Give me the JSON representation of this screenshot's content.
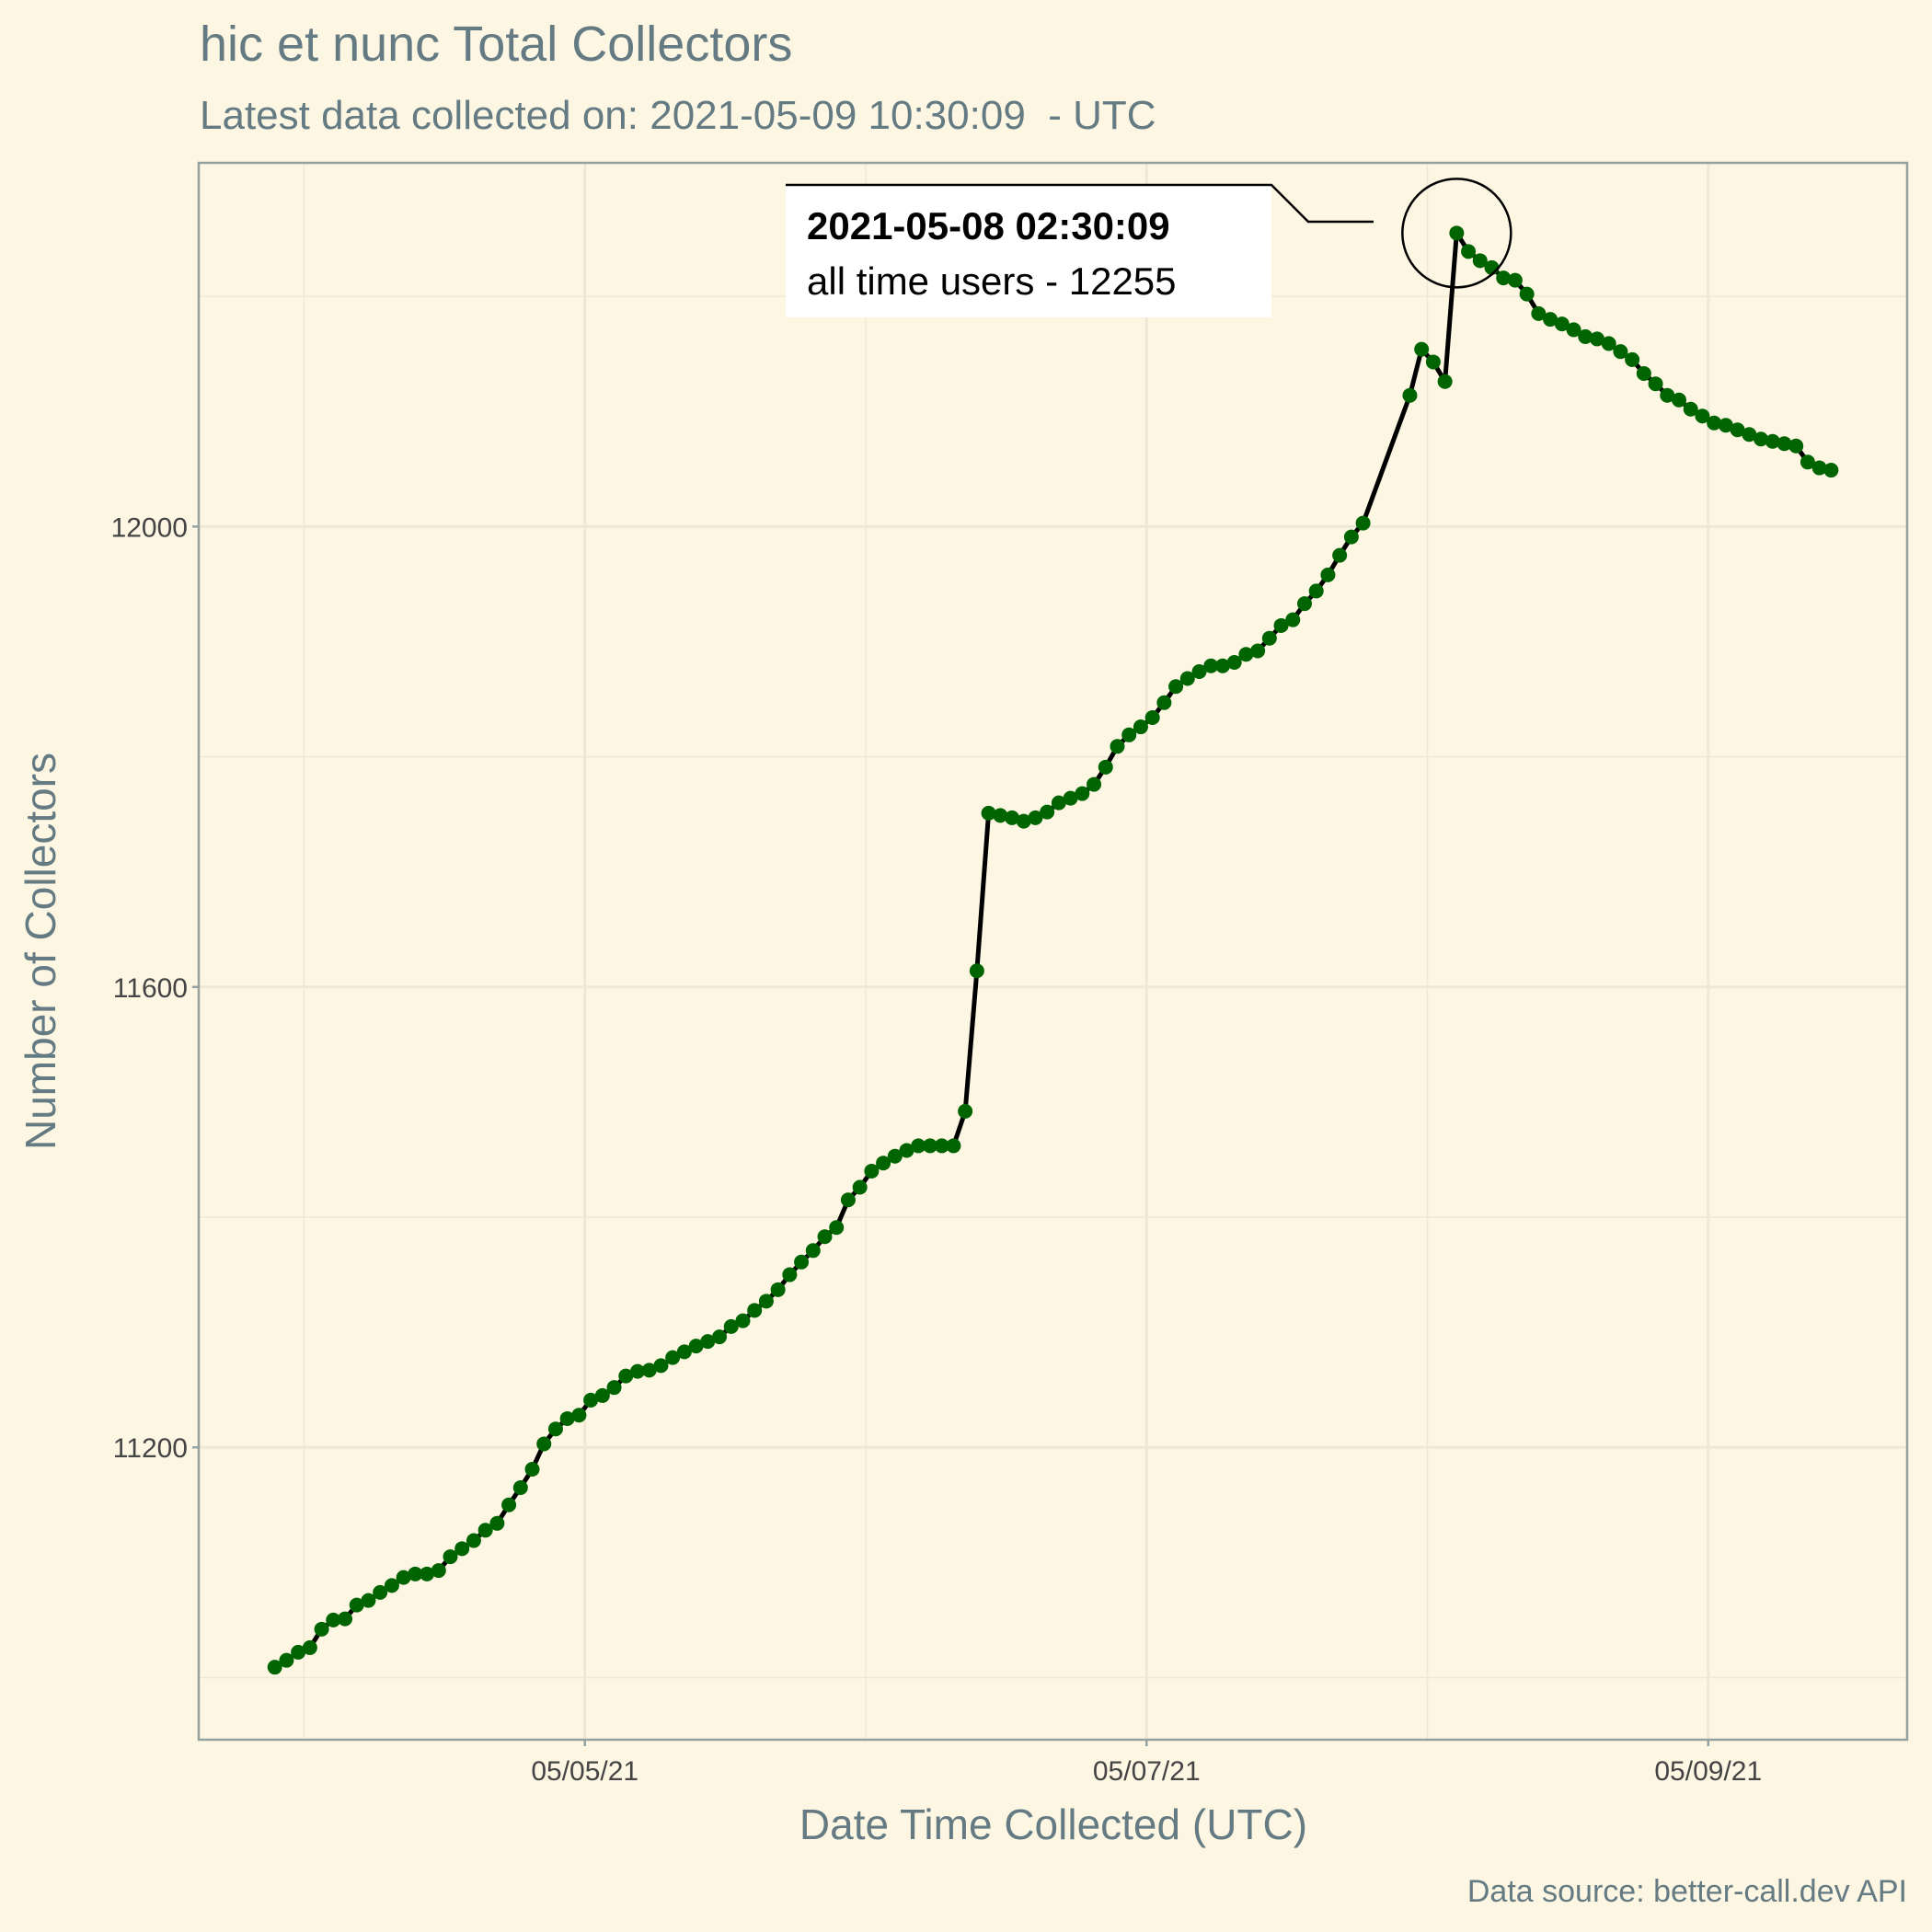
{
  "chart_data": {
    "type": "line",
    "title": "hic et nunc Total Collectors",
    "subtitle": "Latest data collected on: 2021-05-09 10:30:09  - UTC",
    "x_label": "Date Time Collected (UTC)",
    "y_label": "Number of Collectors",
    "caption": "Data source: better-call.dev API",
    "annotation": {
      "title": "2021-05-08 02:30:09",
      "text": "all time users - 12255"
    },
    "grid": true,
    "xlim": [
      "2021-05-03 15:00:00",
      "2021-05-09 17:00:00"
    ],
    "xticks": [
      {
        "value": "2021-05-05 00:00:00",
        "label": "05/05/21"
      },
      {
        "value": "2021-05-07 00:00:00",
        "label": "05/07/21"
      },
      {
        "value": "2021-05-09 00:00:00",
        "label": "05/09/21"
      }
    ],
    "ylim": [
      10946,
      12316
    ],
    "yticks": [
      11200,
      11600,
      12000
    ],
    "x": [
      "2021-05-03 21:30:09",
      "2021-05-03 22:30:09",
      "2021-05-03 23:30:09",
      "2021-05-04 00:30:09",
      "2021-05-04 01:30:09",
      "2021-05-04 02:30:09",
      "2021-05-04 03:30:09",
      "2021-05-04 04:30:09",
      "2021-05-04 05:30:09",
      "2021-05-04 06:30:09",
      "2021-05-04 07:30:09",
      "2021-05-04 08:30:09",
      "2021-05-04 09:30:09",
      "2021-05-04 10:30:09",
      "2021-05-04 11:30:09",
      "2021-05-04 12:30:09",
      "2021-05-04 13:30:09",
      "2021-05-04 14:30:09",
      "2021-05-04 15:30:09",
      "2021-05-04 16:30:09",
      "2021-05-04 17:30:09",
      "2021-05-04 18:30:09",
      "2021-05-04 19:30:09",
      "2021-05-04 20:30:09",
      "2021-05-04 21:30:09",
      "2021-05-04 22:30:09",
      "2021-05-04 23:30:09",
      "2021-05-05 00:30:09",
      "2021-05-05 01:30:09",
      "2021-05-05 02:30:09",
      "2021-05-05 03:30:09",
      "2021-05-05 04:30:09",
      "2021-05-05 05:30:09",
      "2021-05-05 06:30:09",
      "2021-05-05 07:30:09",
      "2021-05-05 08:30:09",
      "2021-05-05 09:30:09",
      "2021-05-05 10:30:09",
      "2021-05-05 11:30:09",
      "2021-05-05 12:30:09",
      "2021-05-05 13:30:09",
      "2021-05-05 14:30:09",
      "2021-05-05 15:30:09",
      "2021-05-05 16:30:09",
      "2021-05-05 17:30:09",
      "2021-05-05 18:30:09",
      "2021-05-05 19:30:09",
      "2021-05-05 20:30:09",
      "2021-05-05 21:30:09",
      "2021-05-05 22:30:09",
      "2021-05-05 23:30:09",
      "2021-05-06 00:30:09",
      "2021-05-06 01:30:09",
      "2021-05-06 02:30:09",
      "2021-05-06 03:30:09",
      "2021-05-06 04:30:09",
      "2021-05-06 05:30:09",
      "2021-05-06 06:30:09",
      "2021-05-06 07:30:09",
      "2021-05-06 08:30:09",
      "2021-05-06 09:30:09",
      "2021-05-06 10:30:09",
      "2021-05-06 11:30:09",
      "2021-05-06 12:30:09",
      "2021-05-06 13:30:09",
      "2021-05-06 14:30:09",
      "2021-05-06 15:30:09",
      "2021-05-06 16:30:09",
      "2021-05-06 17:30:09",
      "2021-05-06 18:30:09",
      "2021-05-06 19:30:09",
      "2021-05-06 20:30:09",
      "2021-05-06 21:30:09",
      "2021-05-06 22:30:09",
      "2021-05-06 23:30:09",
      "2021-05-07 00:30:09",
      "2021-05-07 01:30:09",
      "2021-05-07 02:30:09",
      "2021-05-07 03:30:09",
      "2021-05-07 04:30:09",
      "2021-05-07 05:30:09",
      "2021-05-07 06:30:09",
      "2021-05-07 07:30:09",
      "2021-05-07 08:30:09",
      "2021-05-07 09:30:09",
      "2021-05-07 10:30:09",
      "2021-05-07 11:30:09",
      "2021-05-07 12:30:09",
      "2021-05-07 13:30:09",
      "2021-05-07 14:30:09",
      "2021-05-07 15:30:09",
      "2021-05-07 16:30:09",
      "2021-05-07 17:30:09",
      "2021-05-07 18:30:09",
      "2021-05-07 22:30:09",
      "2021-05-07 23:30:09",
      "2021-05-08 00:30:09",
      "2021-05-08 01:30:09",
      "2021-05-08 02:30:09",
      "2021-05-08 03:30:09",
      "2021-05-08 04:30:09",
      "2021-05-08 05:30:09",
      "2021-05-08 06:30:09",
      "2021-05-08 07:30:09",
      "2021-05-08 08:30:09",
      "2021-05-08 09:30:09",
      "2021-05-08 10:30:09",
      "2021-05-08 11:30:09",
      "2021-05-08 12:30:09",
      "2021-05-08 13:30:09",
      "2021-05-08 14:30:09",
      "2021-05-08 15:30:09",
      "2021-05-08 16:30:09",
      "2021-05-08 17:30:09",
      "2021-05-08 18:30:09",
      "2021-05-08 19:30:09",
      "2021-05-08 20:30:09",
      "2021-05-08 21:30:09",
      "2021-05-08 22:30:09",
      "2021-05-08 23:30:09",
      "2021-05-09 00:30:09",
      "2021-05-09 01:30:09",
      "2021-05-09 02:30:09",
      "2021-05-09 03:30:09",
      "2021-05-09 04:30:09",
      "2021-05-09 05:30:09",
      "2021-05-09 06:30:09",
      "2021-05-09 07:30:09",
      "2021-05-09 08:30:09",
      "2021-05-09 09:30:09",
      "2021-05-09 10:30:09"
    ],
    "series": [
      {
        "name": "Number of Collectors",
        "color": "#006400",
        "line_color": "#000000",
        "values": [
          11009,
          11015,
          11022,
          11026,
          11042,
          11050,
          11051,
          11063,
          11067,
          11074,
          11080,
          11087,
          11090,
          11090,
          11093,
          11105,
          11112,
          11119,
          11128,
          11134,
          11150,
          11165,
          11181,
          11203,
          11216,
          11225,
          11228,
          11241,
          11245,
          11252,
          11262,
          11266,
          11267,
          11271,
          11278,
          11283,
          11288,
          11292,
          11296,
          11305,
          11310,
          11319,
          11327,
          11337,
          11350,
          11361,
          11371,
          11383,
          11391,
          11415,
          11426,
          11440,
          11447,
          11453,
          11458,
          11462,
          11462,
          11462,
          11462,
          11492,
          11614,
          11751,
          11749,
          11747,
          11744,
          11747,
          11752,
          11760,
          11764,
          11768,
          11776,
          11791,
          11809,
          11819,
          11826,
          11834,
          11847,
          11861,
          11868,
          11874,
          11879,
          11879,
          11882,
          11889,
          11892,
          11903,
          11914,
          11919,
          11933,
          11944,
          11958,
          11975,
          11991,
          12003,
          12114,
          12154,
          12143,
          12126,
          12255,
          12239,
          12231,
          12225,
          12216,
          12214,
          12202,
          12185,
          12180,
          12176,
          12171,
          12165,
          12163,
          12159,
          12152,
          12145,
          12133,
          12124,
          12114,
          12110,
          12102,
          12096,
          12090,
          12088,
          12084,
          12080,
          12076,
          12074,
          12072,
          12070,
          12056,
          12051,
          12049
        ]
      }
    ]
  }
}
